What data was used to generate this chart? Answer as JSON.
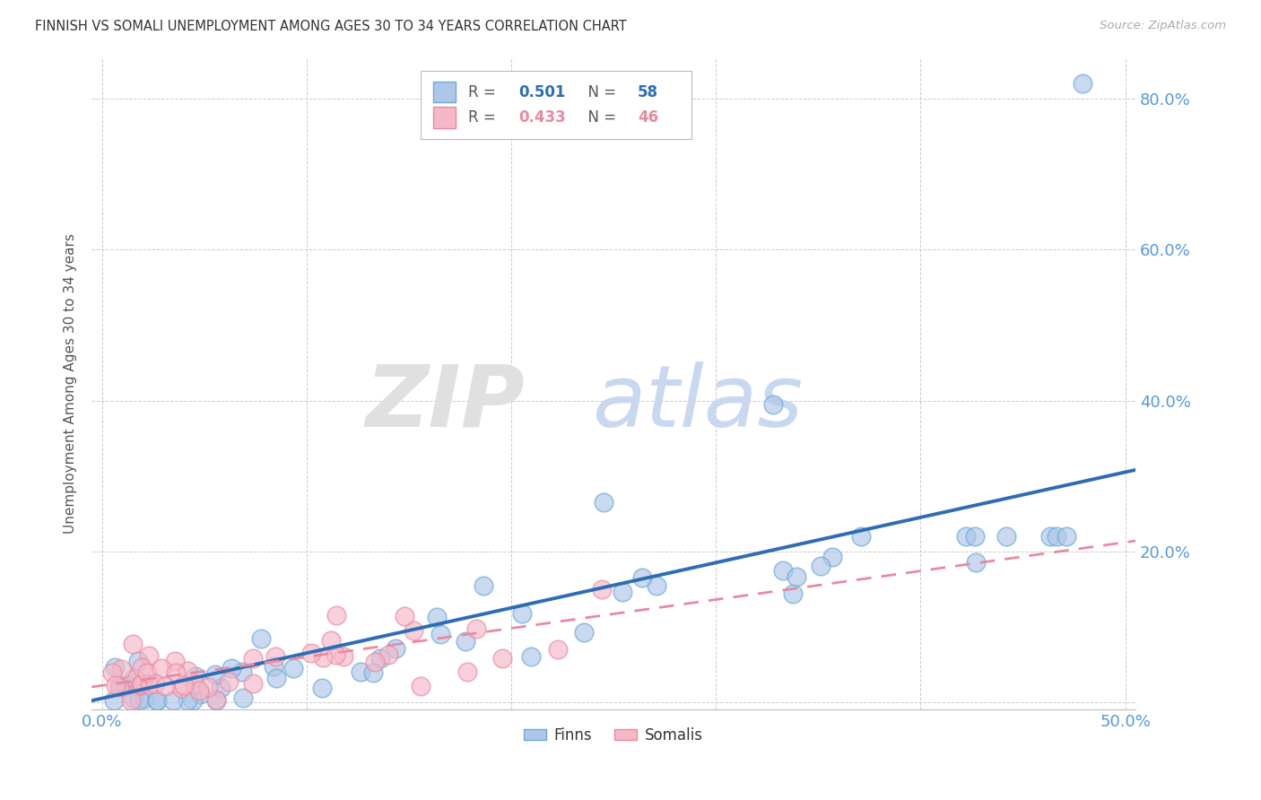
{
  "title": "FINNISH VS SOMALI UNEMPLOYMENT AMONG AGES 30 TO 34 YEARS CORRELATION CHART",
  "source": "Source: ZipAtlas.com",
  "ylabel": "Unemployment Among Ages 30 to 34 years",
  "blue_color": "#aec6e8",
  "blue_edge_color": "#6aaad4",
  "pink_color": "#f5b8c8",
  "pink_edge_color": "#e88aa0",
  "blue_line_color": "#2e6db4",
  "pink_line_color": "#d47090",
  "title_color": "#333333",
  "source_color": "#aaaaaa",
  "tick_color": "#5599dd",
  "grid_color": "#cccccc",
  "background_color": "#ffffff",
  "xlim": [
    -0.005,
    0.505
  ],
  "ylim": [
    -0.01,
    0.855
  ],
  "x_tick_vals": [
    0.0,
    0.1,
    0.2,
    0.3,
    0.4,
    0.5
  ],
  "y_tick_vals": [
    0.0,
    0.2,
    0.4,
    0.6,
    0.8
  ],
  "finns_R": 0.501,
  "finns_N": 58,
  "somalis_R": 0.433,
  "somalis_N": 46
}
